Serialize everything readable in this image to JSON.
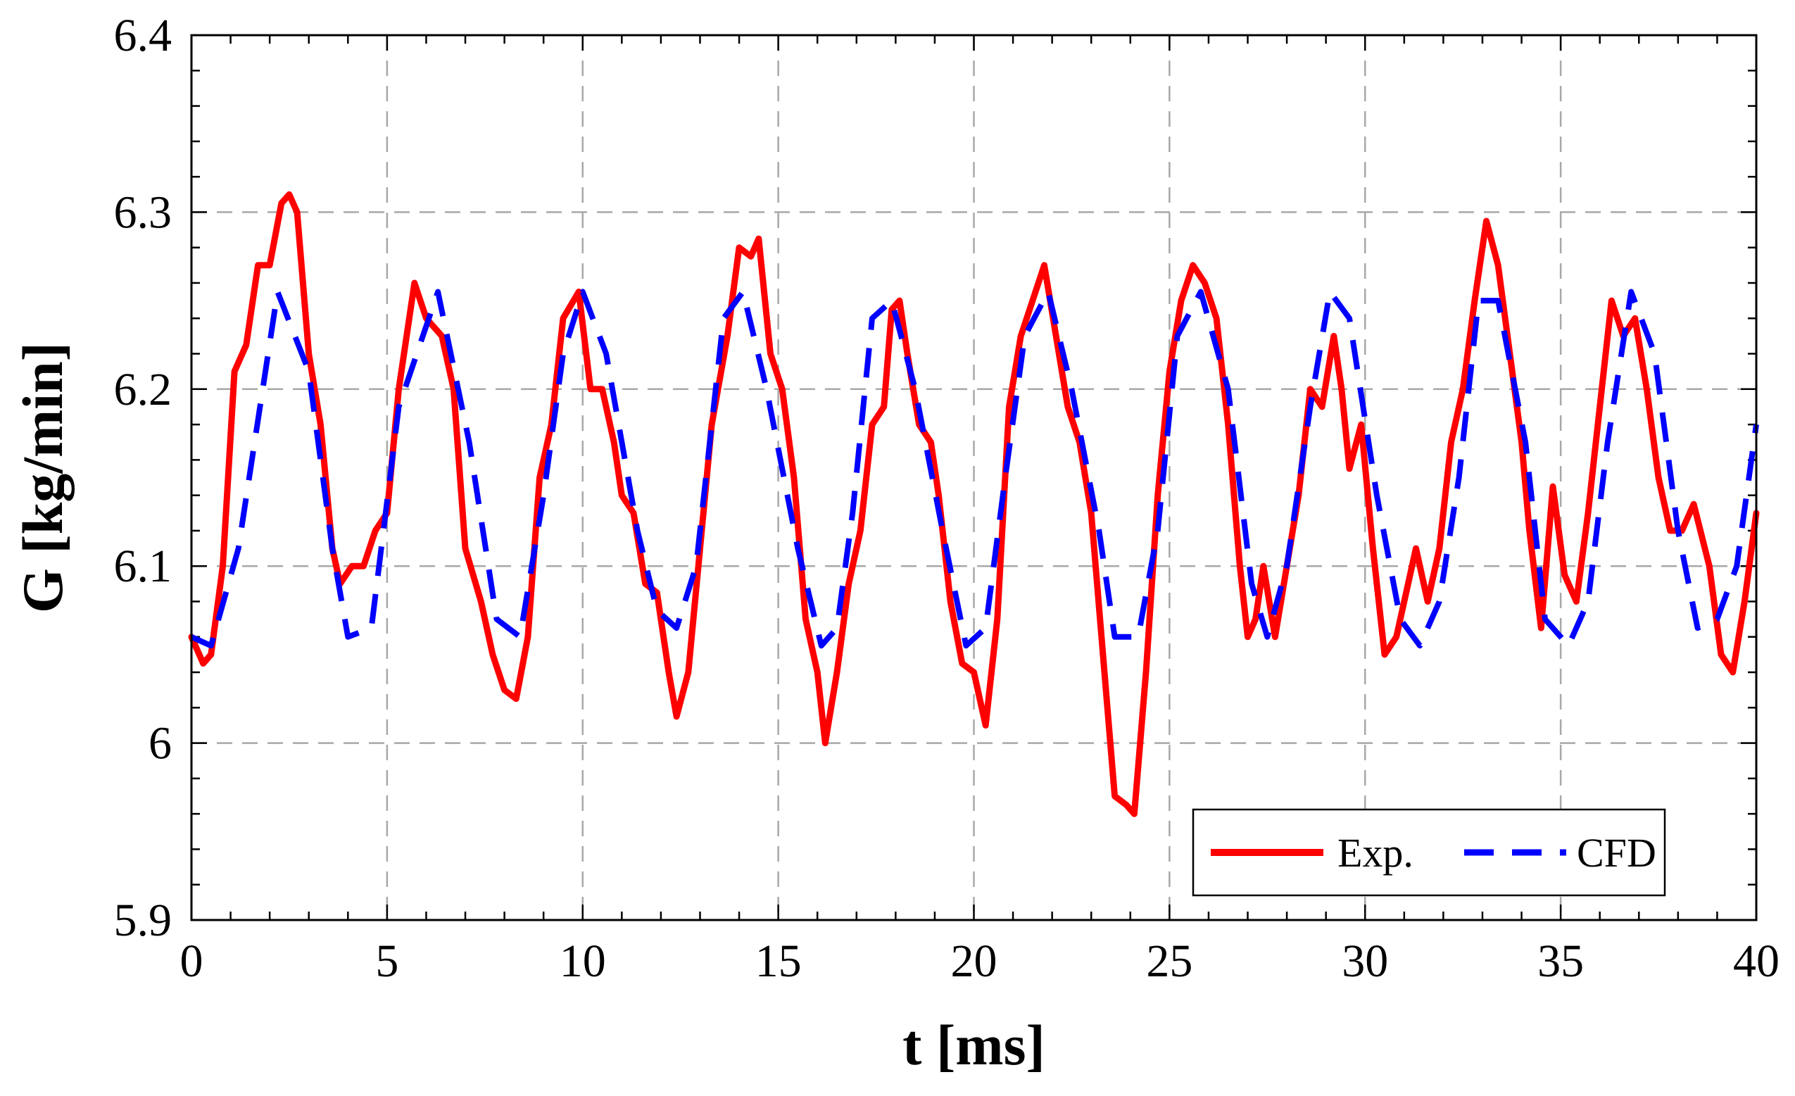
{
  "chart_data": {
    "type": "line",
    "title": "",
    "xlabel": "t [ms]",
    "ylabel": "G [kg/min]",
    "xlim": [
      0,
      40
    ],
    "ylim": [
      5.9,
      6.4
    ],
    "xticks": [
      0,
      5,
      10,
      15,
      20,
      25,
      30,
      35,
      40
    ],
    "xtick_labels": [
      "0",
      "5",
      "10",
      "15",
      "20",
      "25",
      "30",
      "35",
      "40"
    ],
    "yticks": [
      5.9,
      6.0,
      6.1,
      6.2,
      6.3,
      6.4
    ],
    "ytick_labels": [
      "5.9",
      "6",
      "6.1",
      "6.2",
      "6.3",
      "6.4"
    ],
    "grid": true,
    "legend_position": "bottom-right",
    "series": [
      {
        "name": "Exp.",
        "color": "#ff0000",
        "style": "solid",
        "points": [
          [
            0.0,
            6.06
          ],
          [
            0.3,
            6.045
          ],
          [
            0.5,
            6.05
          ],
          [
            0.8,
            6.1
          ],
          [
            1.1,
            6.21
          ],
          [
            1.4,
            6.225
          ],
          [
            1.7,
            6.27
          ],
          [
            2.0,
            6.27
          ],
          [
            2.3,
            6.305
          ],
          [
            2.5,
            6.31
          ],
          [
            2.7,
            6.3
          ],
          [
            3.0,
            6.22
          ],
          [
            3.3,
            6.18
          ],
          [
            3.6,
            6.11
          ],
          [
            3.8,
            6.09
          ],
          [
            4.1,
            6.1
          ],
          [
            4.4,
            6.1
          ],
          [
            4.7,
            6.12
          ],
          [
            5.0,
            6.13
          ],
          [
            5.3,
            6.2
          ],
          [
            5.7,
            6.26
          ],
          [
            6.0,
            6.24
          ],
          [
            6.4,
            6.23
          ],
          [
            6.7,
            6.2
          ],
          [
            7.0,
            6.11
          ],
          [
            7.4,
            6.08
          ],
          [
            7.7,
            6.05
          ],
          [
            8.0,
            6.03
          ],
          [
            8.3,
            6.025
          ],
          [
            8.6,
            6.06
          ],
          [
            8.9,
            6.15
          ],
          [
            9.2,
            6.18
          ],
          [
            9.5,
            6.24
          ],
          [
            9.9,
            6.255
          ],
          [
            10.2,
            6.2
          ],
          [
            10.5,
            6.2
          ],
          [
            10.8,
            6.17
          ],
          [
            11.0,
            6.14
          ],
          [
            11.3,
            6.13
          ],
          [
            11.6,
            6.09
          ],
          [
            11.9,
            6.085
          ],
          [
            12.2,
            6.04
          ],
          [
            12.4,
            6.015
          ],
          [
            12.7,
            6.04
          ],
          [
            13.0,
            6.11
          ],
          [
            13.3,
            6.18
          ],
          [
            13.7,
            6.23
          ],
          [
            14.0,
            6.28
          ],
          [
            14.3,
            6.275
          ],
          [
            14.5,
            6.285
          ],
          [
            14.8,
            6.22
          ],
          [
            15.1,
            6.2
          ],
          [
            15.4,
            6.15
          ],
          [
            15.7,
            6.07
          ],
          [
            16.0,
            6.04
          ],
          [
            16.2,
            6.0
          ],
          [
            16.5,
            6.04
          ],
          [
            16.8,
            6.09
          ],
          [
            17.1,
            6.12
          ],
          [
            17.4,
            6.18
          ],
          [
            17.7,
            6.19
          ],
          [
            17.9,
            6.245
          ],
          [
            18.1,
            6.25
          ],
          [
            18.3,
            6.22
          ],
          [
            18.6,
            6.18
          ],
          [
            18.9,
            6.17
          ],
          [
            19.1,
            6.14
          ],
          [
            19.4,
            6.08
          ],
          [
            19.7,
            6.045
          ],
          [
            20.0,
            6.04
          ],
          [
            20.3,
            6.01
          ],
          [
            20.6,
            6.07
          ],
          [
            20.9,
            6.19
          ],
          [
            21.2,
            6.23
          ],
          [
            21.5,
            6.25
          ],
          [
            21.8,
            6.27
          ],
          [
            22.1,
            6.23
          ],
          [
            22.4,
            6.19
          ],
          [
            22.7,
            6.17
          ],
          [
            23.0,
            6.13
          ],
          [
            23.3,
            6.05
          ],
          [
            23.6,
            5.97
          ],
          [
            23.9,
            5.965
          ],
          [
            24.1,
            5.96
          ],
          [
            24.4,
            6.04
          ],
          [
            24.7,
            6.14
          ],
          [
            25.0,
            6.21
          ],
          [
            25.3,
            6.25
          ],
          [
            25.6,
            6.27
          ],
          [
            25.9,
            6.26
          ],
          [
            26.2,
            6.24
          ],
          [
            26.5,
            6.18
          ],
          [
            26.8,
            6.1
          ],
          [
            27.0,
            6.06
          ],
          [
            27.2,
            6.07
          ],
          [
            27.4,
            6.1
          ],
          [
            27.7,
            6.06
          ],
          [
            28.0,
            6.1
          ],
          [
            28.3,
            6.14
          ],
          [
            28.6,
            6.2
          ],
          [
            28.9,
            6.19
          ],
          [
            29.2,
            6.23
          ],
          [
            29.4,
            6.2
          ],
          [
            29.6,
            6.155
          ],
          [
            29.9,
            6.18
          ],
          [
            30.2,
            6.11
          ],
          [
            30.5,
            6.05
          ],
          [
            30.8,
            6.06
          ],
          [
            31.1,
            6.09
          ],
          [
            31.3,
            6.11
          ],
          [
            31.6,
            6.08
          ],
          [
            31.9,
            6.11
          ],
          [
            32.2,
            6.17
          ],
          [
            32.5,
            6.2
          ],
          [
            32.8,
            6.25
          ],
          [
            33.1,
            6.295
          ],
          [
            33.4,
            6.27
          ],
          [
            33.7,
            6.22
          ],
          [
            34.0,
            6.17
          ],
          [
            34.2,
            6.12
          ],
          [
            34.5,
            6.065
          ],
          [
            34.8,
            6.145
          ],
          [
            35.1,
            6.095
          ],
          [
            35.4,
            6.08
          ],
          [
            35.7,
            6.13
          ],
          [
            36.0,
            6.19
          ],
          [
            36.3,
            6.25
          ],
          [
            36.6,
            6.23
          ],
          [
            36.9,
            6.24
          ],
          [
            37.2,
            6.2
          ],
          [
            37.5,
            6.15
          ],
          [
            37.8,
            6.12
          ],
          [
            38.1,
            6.12
          ],
          [
            38.4,
            6.135
          ],
          [
            38.8,
            6.1
          ],
          [
            39.1,
            6.05
          ],
          [
            39.4,
            6.04
          ],
          [
            39.7,
            6.08
          ],
          [
            40.0,
            6.13
          ]
        ]
      },
      {
        "name": "CFD",
        "color": "#0000ff",
        "style": "dashed",
        "points": [
          [
            0.0,
            6.06
          ],
          [
            0.5,
            6.055
          ],
          [
            1.2,
            6.11
          ],
          [
            2.2,
            6.255
          ],
          [
            3.0,
            6.21
          ],
          [
            3.6,
            6.11
          ],
          [
            4.0,
            6.06
          ],
          [
            4.6,
            6.065
          ],
          [
            5.3,
            6.19
          ],
          [
            6.3,
            6.255
          ],
          [
            7.1,
            6.17
          ],
          [
            7.8,
            6.07
          ],
          [
            8.4,
            6.06
          ],
          [
            9.0,
            6.14
          ],
          [
            9.5,
            6.22
          ],
          [
            10.0,
            6.255
          ],
          [
            10.6,
            6.22
          ],
          [
            11.4,
            6.12
          ],
          [
            11.9,
            6.075
          ],
          [
            12.4,
            6.065
          ],
          [
            12.9,
            6.1
          ],
          [
            13.6,
            6.24
          ],
          [
            14.1,
            6.255
          ],
          [
            14.7,
            6.2
          ],
          [
            15.5,
            6.11
          ],
          [
            16.1,
            6.055
          ],
          [
            16.5,
            6.065
          ],
          [
            16.9,
            6.13
          ],
          [
            17.4,
            6.24
          ],
          [
            17.9,
            6.25
          ],
          [
            18.5,
            6.2
          ],
          [
            19.2,
            6.12
          ],
          [
            19.8,
            6.055
          ],
          [
            20.3,
            6.065
          ],
          [
            20.8,
            6.15
          ],
          [
            21.3,
            6.23
          ],
          [
            21.9,
            6.255
          ],
          [
            22.5,
            6.2
          ],
          [
            23.2,
            6.12
          ],
          [
            23.6,
            6.06
          ],
          [
            24.2,
            6.06
          ],
          [
            24.7,
            6.12
          ],
          [
            25.2,
            6.23
          ],
          [
            25.8,
            6.255
          ],
          [
            26.5,
            6.2
          ],
          [
            27.1,
            6.09
          ],
          [
            27.5,
            6.06
          ],
          [
            28.0,
            6.1
          ],
          [
            28.6,
            6.19
          ],
          [
            29.1,
            6.255
          ],
          [
            29.6,
            6.24
          ],
          [
            30.3,
            6.14
          ],
          [
            30.9,
            6.07
          ],
          [
            31.4,
            6.055
          ],
          [
            31.9,
            6.08
          ],
          [
            32.4,
            6.15
          ],
          [
            32.9,
            6.25
          ],
          [
            33.4,
            6.25
          ],
          [
            34.1,
            6.17
          ],
          [
            34.6,
            6.07
          ],
          [
            35.2,
            6.055
          ],
          [
            35.7,
            6.08
          ],
          [
            36.2,
            6.17
          ],
          [
            36.8,
            6.255
          ],
          [
            37.4,
            6.22
          ],
          [
            38.0,
            6.12
          ],
          [
            38.5,
            6.065
          ],
          [
            39.0,
            6.07
          ],
          [
            39.5,
            6.1
          ],
          [
            40.0,
            6.18
          ]
        ]
      }
    ]
  }
}
